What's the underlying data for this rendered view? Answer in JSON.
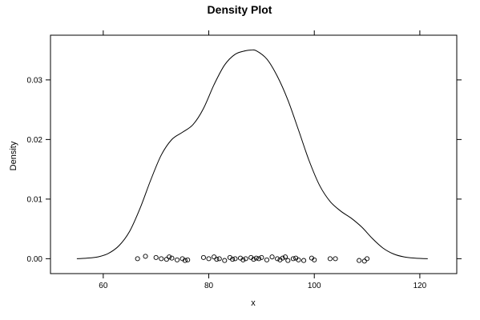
{
  "chart_data": {
    "type": "line",
    "title": "Density Plot",
    "xlabel": "x",
    "ylabel": "Density",
    "xlim": [
      50,
      127
    ],
    "ylim": [
      -0.0025,
      0.0375
    ],
    "x_ticks": [
      60,
      80,
      100,
      120
    ],
    "y_ticks": [
      0.0,
      0.01,
      0.02,
      0.03
    ],
    "x_tick_labels": [
      "60",
      "80",
      "100",
      "120"
    ],
    "y_tick_labels": [
      "0.00",
      "0.01",
      "0.02",
      "0.03"
    ],
    "grid": false,
    "legend": "none",
    "line_color": "#000000",
    "density_curve": {
      "x": [
        55,
        57,
        59,
        61,
        63,
        65,
        67,
        69,
        71,
        73,
        75,
        77,
        79,
        81,
        83,
        85,
        87,
        88,
        89,
        91,
        93,
        95,
        97,
        99,
        101,
        103,
        105,
        107,
        109,
        111,
        113,
        115,
        117,
        119,
        121.5
      ],
      "y": [
        0.0,
        0.0001,
        0.0003,
        0.0009,
        0.0022,
        0.0046,
        0.0085,
        0.0132,
        0.0174,
        0.02,
        0.0212,
        0.0225,
        0.0252,
        0.0292,
        0.0325,
        0.0343,
        0.0349,
        0.035,
        0.0349,
        0.0335,
        0.0306,
        0.0266,
        0.0216,
        0.0165,
        0.0123,
        0.0096,
        0.008,
        0.0068,
        0.0053,
        0.0034,
        0.0018,
        0.0008,
        0.0003,
        0.0001,
        0.0
      ]
    },
    "rug_points": {
      "x": [
        66.5,
        68,
        70,
        71,
        72,
        72.5,
        73,
        74,
        75,
        75.5,
        76,
        79,
        80,
        81,
        81.5,
        82,
        83,
        84,
        84.5,
        85,
        86,
        86.5,
        87,
        88,
        88.5,
        89,
        89.5,
        90,
        91,
        92,
        93,
        93.5,
        94,
        94.5,
        95,
        96,
        96.5,
        97,
        98,
        99.5,
        100,
        103,
        104,
        108.5,
        109.5,
        110
      ],
      "y": [
        0.0,
        0.0004,
        0.0002,
        0.0,
        -0.0001,
        0.0003,
        0.0001,
        -0.0002,
        0.0,
        -0.0003,
        -0.0002,
        0.0002,
        0.0,
        0.0003,
        -0.0001,
        0.0,
        -0.0003,
        0.0002,
        -0.0001,
        0.0,
        0.0001,
        -0.0002,
        0.0,
        0.0002,
        -0.0001,
        0.0001,
        0.0,
        0.0002,
        -0.0002,
        0.0003,
        0.0,
        -0.0002,
        0.0001,
        0.0003,
        -0.0003,
        0.0,
        0.0001,
        -0.0002,
        -0.0003,
        0.0001,
        -0.0002,
        0.0,
        0.0,
        -0.0003,
        -0.0004,
        0.0
      ]
    }
  }
}
